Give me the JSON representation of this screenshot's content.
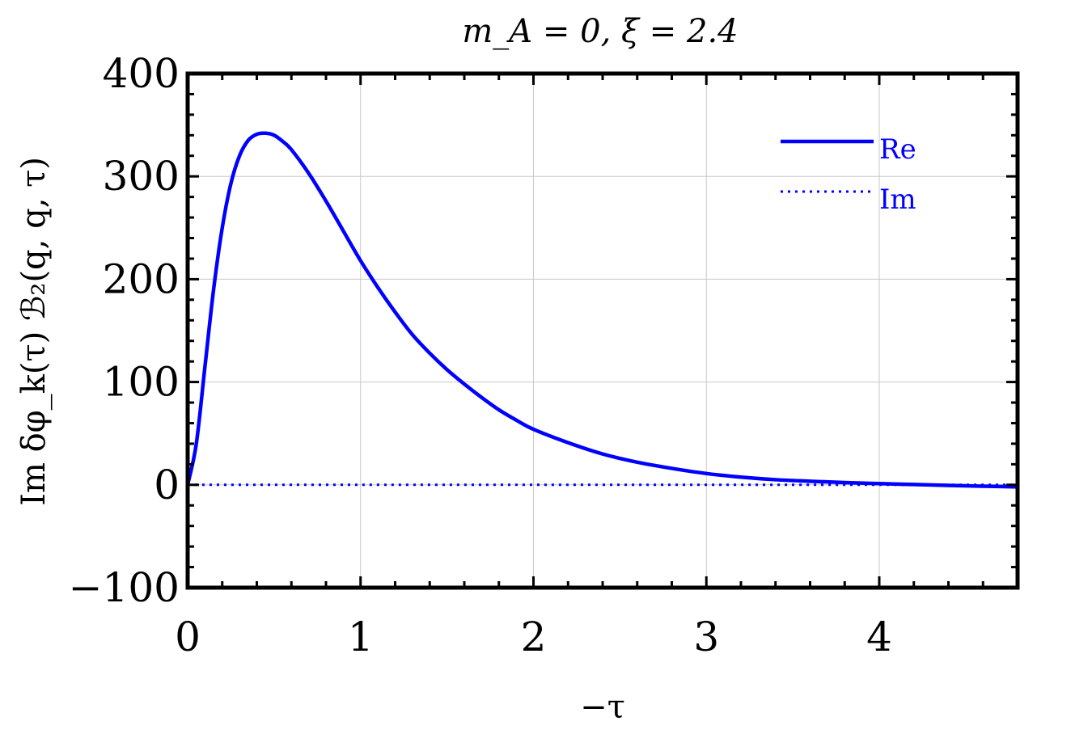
{
  "chart_data": {
    "type": "line",
    "title": "m_A = 0, ξ = 2.4",
    "xlabel": "−τ",
    "ylabel": "Im δφ_k(τ) ℬ₂(q, q, τ)",
    "xlim": [
      0,
      4.8
    ],
    "ylim": [
      -100,
      400
    ],
    "x_ticks": [
      0,
      1,
      2,
      3,
      4
    ],
    "x_tick_labels": [
      "0",
      "1",
      "2",
      "3",
      "4"
    ],
    "y_ticks": [
      -100,
      0,
      100,
      200,
      300,
      400
    ],
    "y_tick_labels": [
      "−100",
      "0",
      "100",
      "200",
      "300",
      "400"
    ],
    "grid": true,
    "legend_position": "top-right",
    "line_color": "#0000ff",
    "series": [
      {
        "name": "Re",
        "style": "solid",
        "x": [
          0,
          0.05,
          0.1,
          0.15,
          0.2,
          0.25,
          0.3,
          0.35,
          0.4,
          0.45,
          0.5,
          0.55,
          0.6,
          0.7,
          0.8,
          0.9,
          1.0,
          1.1,
          1.2,
          1.3,
          1.4,
          1.5,
          1.6,
          1.7,
          1.8,
          1.9,
          2.0,
          2.2,
          2.4,
          2.6,
          2.8,
          3.0,
          3.2,
          3.4,
          3.6,
          3.8,
          4.0,
          4.2,
          4.4,
          4.6,
          4.8
        ],
        "values": [
          0,
          40,
          115,
          190,
          250,
          293,
          320,
          335,
          341,
          342,
          340,
          334,
          326,
          303,
          276,
          247,
          218,
          192,
          168,
          146,
          128,
          112,
          98,
          85,
          73,
          63,
          54,
          41,
          30,
          22,
          16,
          11,
          7.5,
          5,
          3.5,
          2.2,
          1.2,
          0.3,
          -0.6,
          -1.3,
          -2
        ]
      },
      {
        "name": "Im",
        "style": "dotted",
        "x": [
          0,
          4.8
        ],
        "values": [
          0,
          0
        ]
      }
    ]
  }
}
